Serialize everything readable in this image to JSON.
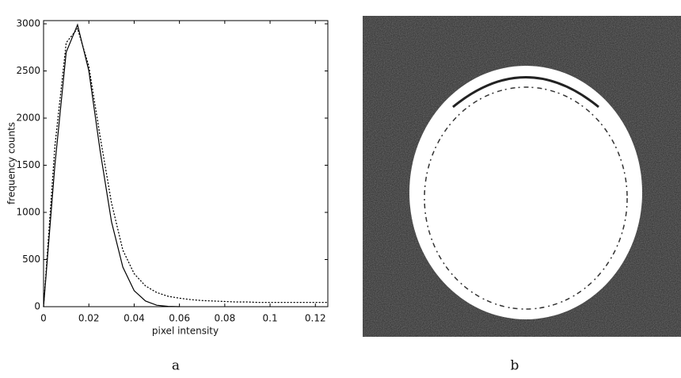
{
  "chart_data": {
    "type": "line",
    "xlabel": "pixel intensity",
    "ylabel": "frequency counts",
    "x": [
      0,
      0.005,
      0.01,
      0.015,
      0.02,
      0.025,
      0.03,
      0.035,
      0.04,
      0.045,
      0.05,
      0.055,
      0.06,
      0.065,
      0.07,
      0.075,
      0.08,
      0.085,
      0.09,
      0.095,
      0.1,
      0.105,
      0.11,
      0.115,
      0.12,
      0.125
    ],
    "series": [
      {
        "color": "#000000",
        "style": "solid",
        "values": [
          0,
          1500,
          2700,
          2990,
          2500,
          1650,
          900,
          420,
          170,
          60,
          15,
          3,
          0,
          null,
          null,
          null,
          null,
          null,
          null,
          null,
          null,
          null,
          null,
          null,
          null,
          null
        ]
      },
      {
        "color": "#000000",
        "style": "dotted",
        "values": [
          0,
          1700,
          2800,
          2950,
          2550,
          1800,
          1100,
          600,
          350,
          220,
          150,
          110,
          90,
          75,
          65,
          60,
          55,
          50,
          50,
          45,
          45,
          45,
          45,
          45,
          45,
          45
        ]
      }
    ],
    "xlim": [
      0,
      0.1255
    ],
    "xticks": [
      0,
      0.02,
      0.04,
      0.06,
      0.08,
      0.1,
      0.12
    ],
    "ylim": [
      0,
      3034
    ],
    "yticks": [
      0,
      500,
      1000,
      1500,
      2000,
      2500,
      3000
    ],
    "grid": false
  },
  "panels": [
    "a",
    "b"
  ]
}
